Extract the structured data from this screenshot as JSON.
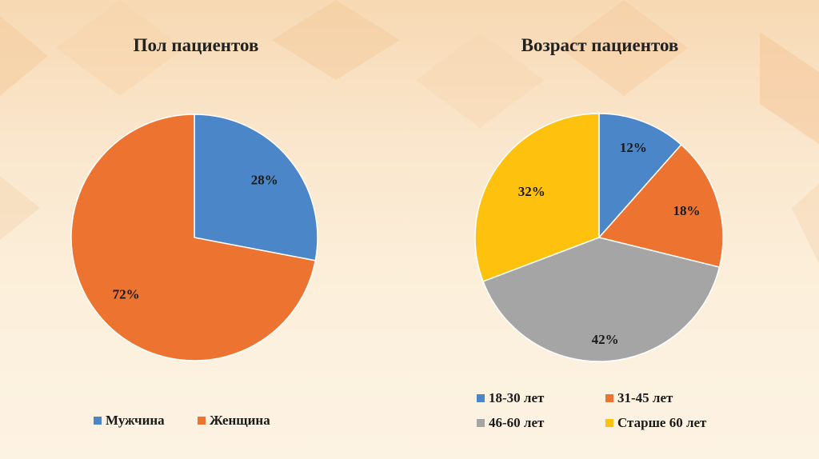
{
  "colors": {
    "blue": "#4a86c8",
    "orange": "#ed7331",
    "gray": "#a5a5a5",
    "yellow": "#fdc10e"
  },
  "chart_data": [
    {
      "type": "pie",
      "title": "Пол пациентов",
      "categories": [
        "Мужчина",
        "Женщина"
      ],
      "values": [
        28,
        72
      ],
      "labels": [
        "28%",
        "72%"
      ],
      "colors": [
        "#4a86c8",
        "#ed7331"
      ],
      "legend": "bottom"
    },
    {
      "type": "pie",
      "title": "Возраст пациентов",
      "categories": [
        "18-30 лет",
        "31-45 лет",
        "46-60 лет",
        "Старше 60 лет"
      ],
      "values": [
        12,
        18,
        42,
        32
      ],
      "labels": [
        "12%",
        "18%",
        "42%",
        "32%"
      ],
      "colors": [
        "#4a86c8",
        "#ed7331",
        "#a5a5a5",
        "#fdc10e"
      ],
      "legend": "bottom"
    }
  ]
}
